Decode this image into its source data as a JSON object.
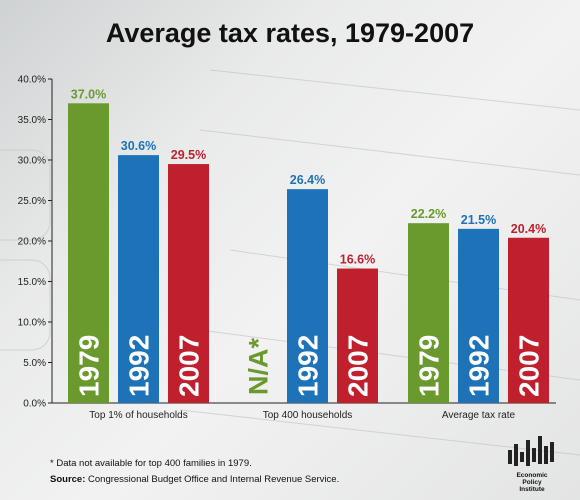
{
  "title": "Average tax rates, 1979-2007",
  "footnote": "* Data not available for top 400 families in 1979.",
  "source_label": "Source:",
  "source_text": " Congressional Budget Office and Internal Revenue Service.",
  "logo": {
    "icon": "epi-bar-logo-icon",
    "line1": "Economic",
    "line2": "Policy",
    "line3": "Institute"
  },
  "colors": {
    "1979": "#6a9a2e",
    "1992": "#1d72b8",
    "2007": "#c0202e",
    "na": "#6a9a2e"
  },
  "chart_data": {
    "type": "bar",
    "title": "Average tax rates, 1979-2007",
    "xlabel": "",
    "ylabel": "",
    "ylim": [
      0,
      40
    ],
    "y_ticks": [
      "0.0%",
      "5.0%",
      "10.0%",
      "15.0%",
      "20.0%",
      "25.0%",
      "30.0%",
      "35.0%",
      "40.0%"
    ],
    "grid": false,
    "legend": "none",
    "groups": [
      {
        "category": "Top 1% of households",
        "bars": [
          {
            "year": "1979",
            "value": 37.0,
            "label": "37.0%"
          },
          {
            "year": "1992",
            "value": 30.6,
            "label": "30.6%"
          },
          {
            "year": "2007",
            "value": 29.5,
            "label": "29.5%"
          }
        ]
      },
      {
        "category": "Top 400 households",
        "bars": [
          {
            "year": "1979",
            "value": null,
            "label": "N/A*"
          },
          {
            "year": "1992",
            "value": 26.4,
            "label": "26.4%"
          },
          {
            "year": "2007",
            "value": 16.6,
            "label": "16.6%"
          }
        ]
      },
      {
        "category": "Average tax rate",
        "bars": [
          {
            "year": "1979",
            "value": 22.2,
            "label": "22.2%"
          },
          {
            "year": "1992",
            "value": 21.5,
            "label": "21.5%"
          },
          {
            "year": "2007",
            "value": 20.4,
            "label": "20.4%"
          }
        ]
      }
    ]
  }
}
